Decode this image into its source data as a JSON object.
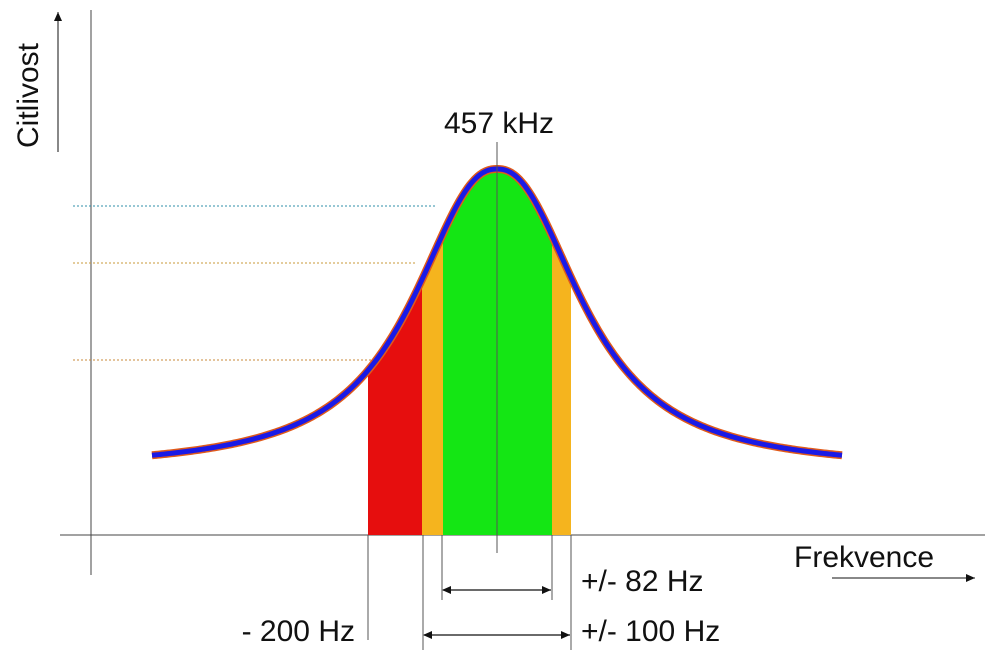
{
  "axes": {
    "y_label": "Citlivost",
    "x_label": "Frekvence"
  },
  "annotations": {
    "center": "457 kHz",
    "bandwidth_inner": "+/- 82 Hz",
    "bandwidth_outer": "+/- 100 Hz",
    "offset_left": "- 200 Hz"
  },
  "colors": {
    "curve": "#1a1ae6",
    "curve_outline": "#e05a1a",
    "band_inner": "#14e614",
    "band_outer": "#f5b41e",
    "band_offset": "#e60e0e",
    "guide_top": "#2f8fa8",
    "guide_mid": "#c89a3a",
    "guide_low": "#c8883a"
  }
}
